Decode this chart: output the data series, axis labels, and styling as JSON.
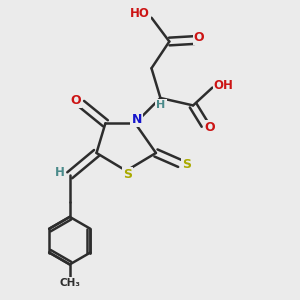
{
  "bg_color": "#ebebeb",
  "bond_color": "#2d2d2d",
  "bond_width": 1.8,
  "atoms": {
    "N": {
      "color": "#1414cc"
    },
    "O": {
      "color": "#cc1414"
    },
    "S": {
      "color": "#aaaa00"
    },
    "H": {
      "color": "#4a8a8a"
    }
  },
  "figsize": [
    3.0,
    3.0
  ],
  "dpi": 100,
  "xlim": [
    0,
    10
  ],
  "ylim": [
    0,
    10
  ]
}
